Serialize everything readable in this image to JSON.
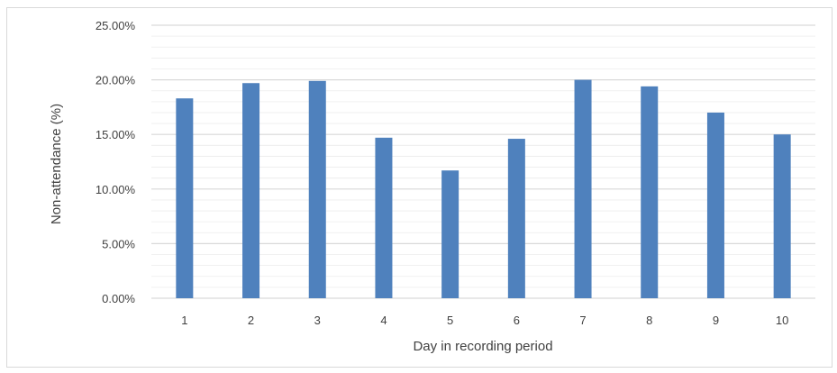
{
  "chart_data": {
    "type": "bar",
    "title": "",
    "xlabel": "Day in recording period",
    "ylabel": "Non-attendance (%)",
    "categories": [
      "1",
      "2",
      "3",
      "4",
      "5",
      "6",
      "7",
      "8",
      "9",
      "10"
    ],
    "values": [
      18.3,
      19.7,
      19.9,
      14.7,
      11.7,
      14.6,
      20.0,
      19.4,
      17.0,
      15.0
    ],
    "ylim": [
      0,
      25
    ],
    "yticks": [
      0,
      5,
      10,
      15,
      20,
      25
    ],
    "ytick_labels": [
      "0.00%",
      "5.00%",
      "10.00%",
      "15.00%",
      "20.00%",
      "25.00%"
    ],
    "grid": true,
    "legend": "none",
    "bar_color": "#4f81bd",
    "grid_color": "#d9d9d9"
  }
}
